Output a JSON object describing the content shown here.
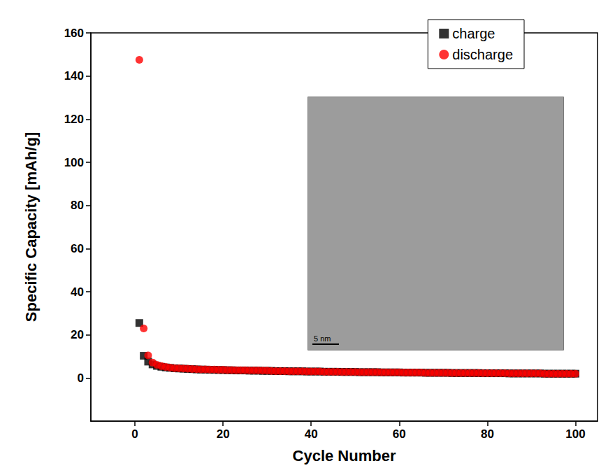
{
  "chart_data": {
    "type": "scatter",
    "xlabel": "Cycle Number",
    "ylabel": "Specific Capacity [mAh/g]",
    "x": [
      1,
      2,
      3,
      4,
      5,
      6,
      7,
      8,
      9,
      10,
      11,
      12,
      13,
      14,
      15,
      16,
      17,
      18,
      19,
      20,
      21,
      22,
      23,
      24,
      25,
      26,
      27,
      28,
      29,
      30,
      31,
      32,
      33,
      34,
      35,
      36,
      37,
      38,
      39,
      40,
      41,
      42,
      43,
      44,
      45,
      46,
      47,
      48,
      49,
      50,
      51,
      52,
      53,
      54,
      55,
      56,
      57,
      58,
      59,
      60,
      61,
      62,
      63,
      64,
      65,
      66,
      67,
      68,
      69,
      70,
      71,
      72,
      73,
      74,
      75,
      76,
      77,
      78,
      79,
      80,
      81,
      82,
      83,
      84,
      85,
      86,
      87,
      88,
      89,
      90,
      91,
      92,
      93,
      94,
      95,
      96,
      97,
      98,
      99,
      100
    ],
    "series": [
      {
        "name": "charge",
        "color": "#000000",
        "marker": "square",
        "values": [
          25.5,
          10.3,
          7.6,
          6.3,
          5.6,
          5.2,
          4.9,
          4.7,
          4.5,
          4.4,
          4.3,
          4.2,
          4.1,
          4.0,
          3.9,
          3.9,
          3.8,
          3.8,
          3.7,
          3.7,
          3.6,
          3.6,
          3.5,
          3.5,
          3.5,
          3.4,
          3.4,
          3.4,
          3.3,
          3.3,
          3.3,
          3.2,
          3.2,
          3.2,
          3.1,
          3.1,
          3.1,
          3.1,
          3.0,
          3.0,
          3.0,
          3.0,
          2.9,
          2.9,
          2.9,
          2.9,
          2.8,
          2.8,
          2.8,
          2.8,
          2.7,
          2.7,
          2.7,
          2.7,
          2.7,
          2.6,
          2.6,
          2.6,
          2.6,
          2.6,
          2.5,
          2.5,
          2.5,
          2.5,
          2.5,
          2.4,
          2.4,
          2.4,
          2.4,
          2.4,
          2.4,
          2.3,
          2.3,
          2.3,
          2.3,
          2.3,
          2.3,
          2.3,
          2.2,
          2.2,
          2.2,
          2.2,
          2.2,
          2.2,
          2.1,
          2.1,
          2.1,
          2.1,
          2.1,
          2.1,
          2.1,
          2.1,
          2.0,
          2.0,
          2.0,
          2.0,
          2.0,
          2.0,
          2.0,
          2.0
        ]
      },
      {
        "name": "discharge",
        "color": "#ff0000",
        "marker": "circle",
        "values": [
          147.5,
          23.0,
          10.5,
          7.2,
          6.1,
          5.5,
          5.1,
          4.8,
          4.6,
          4.5,
          4.4,
          4.3,
          4.2,
          4.1,
          4.0,
          4.0,
          3.9,
          3.9,
          3.8,
          3.8,
          3.7,
          3.7,
          3.6,
          3.6,
          3.6,
          3.5,
          3.5,
          3.5,
          3.4,
          3.4,
          3.3,
          3.2,
          3.2,
          3.2,
          3.1,
          3.1,
          3.1,
          3.1,
          3.0,
          3.0,
          3.0,
          3.0,
          2.9,
          2.9,
          2.9,
          2.9,
          2.8,
          2.8,
          2.8,
          2.8,
          2.7,
          2.7,
          2.7,
          2.7,
          2.7,
          2.6,
          2.6,
          2.6,
          2.6,
          2.6,
          2.5,
          2.5,
          2.5,
          2.5,
          2.5,
          2.4,
          2.4,
          2.4,
          2.4,
          2.4,
          2.4,
          2.3,
          2.3,
          2.3,
          2.3,
          2.3,
          2.3,
          2.3,
          2.2,
          2.2,
          2.2,
          2.2,
          2.2,
          2.2,
          2.1,
          2.1,
          2.1,
          2.1,
          2.1,
          2.1,
          2.1,
          2.1,
          2.0,
          2.0,
          2.0,
          2.0,
          2.0,
          2.0,
          2.0,
          2.0
        ]
      }
    ],
    "xlim": [
      -10,
      105
    ],
    "xticks": [
      0,
      20,
      40,
      60,
      80,
      100
    ],
    "ylim": [
      -20,
      160
    ],
    "yticks": [
      0,
      20,
      40,
      60,
      80,
      100,
      120,
      140,
      160
    ],
    "grid": false,
    "legend": "upper right",
    "annotations": [
      "5 nm"
    ]
  }
}
